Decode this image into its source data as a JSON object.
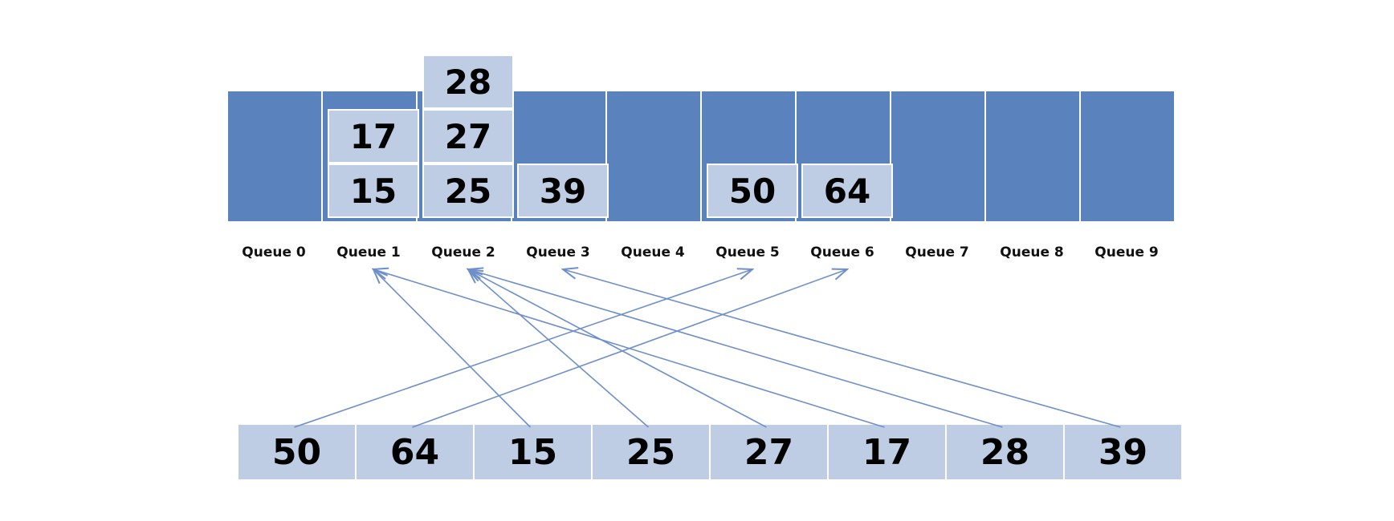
{
  "colors": {
    "queue_fill": "#5a82bd",
    "item_fill": "#bfcde4",
    "arrow": "#6e8fc9",
    "text": "#000000"
  },
  "queues": [
    {
      "label": "Queue 0",
      "items": []
    },
    {
      "label": "Queue 1",
      "items": [
        "15",
        "17"
      ]
    },
    {
      "label": "Queue 2",
      "items": [
        "25",
        "27",
        "28"
      ]
    },
    {
      "label": "Queue 3",
      "items": [
        "39"
      ]
    },
    {
      "label": "Queue 4",
      "items": []
    },
    {
      "label": "Queue 5",
      "items": [
        "50"
      ]
    },
    {
      "label": "Queue 6",
      "items": [
        "64"
      ]
    },
    {
      "label": "Queue 7",
      "items": []
    },
    {
      "label": "Queue 8",
      "items": []
    },
    {
      "label": "Queue 9",
      "items": []
    }
  ],
  "input_sequence": [
    {
      "value": "50",
      "queue": 5
    },
    {
      "value": "64",
      "queue": 6
    },
    {
      "value": "15",
      "queue": 1
    },
    {
      "value": "25",
      "queue": 2
    },
    {
      "value": "27",
      "queue": 2
    },
    {
      "value": "17",
      "queue": 1
    },
    {
      "value": "28",
      "queue": 2
    },
    {
      "value": "39",
      "queue": 3
    }
  ]
}
